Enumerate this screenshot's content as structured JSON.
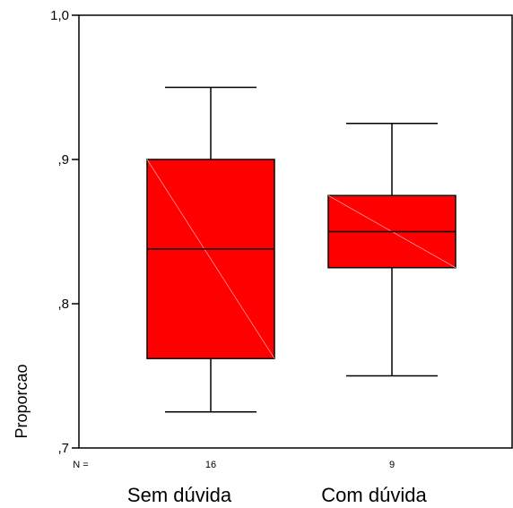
{
  "chart_data": {
    "type": "boxplot",
    "title": "",
    "xlabel": "",
    "ylabel": "Proporcao",
    "ylim": [
      0.7,
      1.0
    ],
    "yticks": [
      0.7,
      0.8,
      0.9,
      1.0
    ],
    "ytick_labels": [
      ",7",
      ",8",
      ",9",
      "1,0"
    ],
    "grid": false,
    "n_prefix": "N =",
    "categories": [
      "Sem dúvida",
      "Com dúvida"
    ],
    "n_labels": [
      "16",
      "9"
    ],
    "box_color": "#ff0000",
    "boxes": [
      {
        "category": "Sem dúvida",
        "n": 16,
        "whisker_low": 0.725,
        "q1": 0.762,
        "median": 0.838,
        "q3": 0.9,
        "whisker_high": 0.95
      },
      {
        "category": "Com dúvida",
        "n": 9,
        "whisker_low": 0.75,
        "q1": 0.825,
        "median": 0.85,
        "q3": 0.875,
        "whisker_high": 0.925
      }
    ]
  }
}
